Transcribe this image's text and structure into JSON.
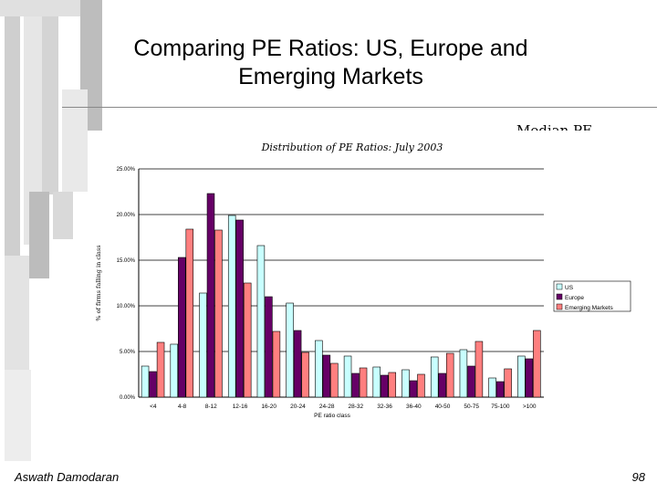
{
  "slide": {
    "title_line1": "Comparing PE Ratios: US, Europe and",
    "title_line2": "Emerging Markets",
    "cut_text": "Median PE ...",
    "author": "Aswath Damodaran",
    "page_number": "98"
  },
  "chart_data": {
    "type": "bar",
    "title": "Distribution of PE Ratios: July 2003",
    "xlabel": "PE ratio class",
    "ylabel": "% of firms falling in class",
    "ylim": [
      0,
      25
    ],
    "yticks": [
      0,
      5,
      10,
      15,
      20,
      25
    ],
    "ytick_labels": [
      "0.00%",
      "5.00%",
      "10.00%",
      "15.00%",
      "20.00%",
      "25.00%"
    ],
    "grid": true,
    "legend_position": "right",
    "categories": [
      "<4",
      "4-8",
      "8-12",
      "12-16",
      "16-20",
      "20-24",
      "24-28",
      "28-32",
      "32-36",
      "36-40",
      "40-50",
      "50-75",
      "75-100",
      ">100"
    ],
    "series": [
      {
        "name": "US",
        "color": "#c8ffff",
        "values": [
          3.4,
          5.8,
          11.4,
          19.9,
          16.6,
          10.3,
          6.2,
          4.5,
          3.3,
          3.0,
          4.4,
          5.2,
          2.1,
          4.5
        ]
      },
      {
        "name": "Europe",
        "color": "#660066",
        "values": [
          2.8,
          15.3,
          22.3,
          19.4,
          11.0,
          7.3,
          4.6,
          2.6,
          2.4,
          1.8,
          2.6,
          3.4,
          1.7,
          4.2
        ]
      },
      {
        "name": "Emerging Markets",
        "color": "#ff7f7f",
        "values": [
          6.0,
          18.4,
          18.3,
          12.5,
          7.2,
          4.9,
          3.7,
          3.2,
          2.7,
          2.5,
          4.8,
          6.1,
          3.1,
          7.3
        ]
      }
    ]
  }
}
